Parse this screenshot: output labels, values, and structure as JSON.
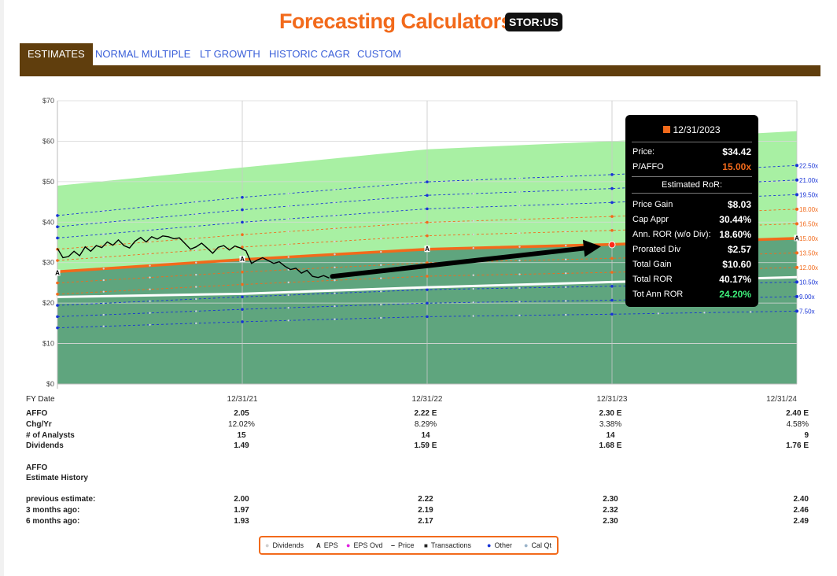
{
  "header": {
    "title": "Forecasting Calculators",
    "ticker": "STOR:US"
  },
  "tabs": [
    {
      "label": "ESTIMATES",
      "active": true
    },
    {
      "label": "NORMAL MULTIPLE",
      "active": false
    },
    {
      "label": "LT GROWTH",
      "active": false
    },
    {
      "label": "HISTORIC CAGR",
      "active": false
    },
    {
      "label": "CUSTOM",
      "active": false
    }
  ],
  "colors": {
    "accent": "#f26a1b",
    "tab_bar": "#603e0d",
    "band_upper": "#a8f0a3",
    "band_lower": "#5fa57e",
    "multiple_blue": "#1733d6",
    "multiple_orange": "#f26a1b",
    "price_line": "#000000",
    "dividend_line": "#ffffff",
    "tab_link": "#3a5fd9"
  },
  "chart_data": {
    "type": "line",
    "ylim": [
      0,
      70
    ],
    "y_ticks": [
      "$0",
      "$10",
      "$20",
      "$30",
      "$40",
      "$50",
      "$60",
      "$70"
    ],
    "y_tick_values": [
      0,
      10,
      20,
      30,
      40,
      50,
      60,
      70
    ],
    "x_axis_label": "FY Date",
    "x_categories": [
      "12/31/21",
      "12/31/22",
      "12/31/23",
      "12/31/24"
    ],
    "x_range_years": [
      2021.0,
      2025.0
    ],
    "x_tick_positions": [
      2022.0,
      2023.0,
      2024.0,
      2025.0
    ],
    "grid": true,
    "multiple_lines": {
      "labels": [
        "22.50x",
        "21.00x",
        "19.50x",
        "18.00x",
        "16.50x",
        "15.00x",
        "13.50x",
        "12.00x",
        "10.50x",
        "9.00x",
        "7.50x"
      ],
      "multiples": [
        22.5,
        21.0,
        19.5,
        18.0,
        16.5,
        15.0,
        13.5,
        12.0,
        10.5,
        9.0,
        7.5
      ],
      "colors": [
        "#1733d6",
        "#1733d6",
        "#1733d6",
        "#f26a1b",
        "#f26a1b",
        "#f26a1b",
        "#f26a1b",
        "#f26a1b",
        "#1733d6",
        "#1733d6",
        "#1733d6"
      ],
      "affo_x": [
        2021.0,
        2022.0,
        2023.0,
        2024.0,
        2025.0
      ],
      "affo_y": [
        1.85,
        2.05,
        2.22,
        2.3,
        2.4
      ]
    },
    "upper_band_top": [
      49.0,
      53.5,
      58.0,
      60.0,
      62.5
    ],
    "dividend_line": {
      "x": [
        2021.0,
        2022.0,
        2023.0,
        2024.0,
        2025.0
      ],
      "y": [
        21.5,
        22.3,
        23.9,
        25.2,
        26.4
      ]
    },
    "price_series": {
      "name": "Price",
      "x": [
        2021.0,
        2021.03,
        2021.06,
        2021.09,
        2021.12,
        2021.15,
        2021.18,
        2021.21,
        2021.24,
        2021.27,
        2021.3,
        2021.33,
        2021.36,
        2021.39,
        2021.42,
        2021.45,
        2021.48,
        2021.51,
        2021.54,
        2021.57,
        2021.6,
        2021.63,
        2021.66,
        2021.69,
        2021.72,
        2021.75,
        2021.78,
        2021.81,
        2021.84,
        2021.87,
        2021.9,
        2021.93,
        2021.96,
        2021.99,
        2022.02,
        2022.05,
        2022.08,
        2022.11,
        2022.14,
        2022.17,
        2022.2,
        2022.23,
        2022.26,
        2022.29,
        2022.32,
        2022.35,
        2022.38,
        2022.41,
        2022.44,
        2022.47
      ],
      "y": [
        33.5,
        31.2,
        31.5,
        32.8,
        31.7,
        33.9,
        32.8,
        34.2,
        33.7,
        35.1,
        34.3,
        35.6,
        34.2,
        33.6,
        35.3,
        36.2,
        35.1,
        36.4,
        35.8,
        36.6,
        36.4,
        35.9,
        36.1,
        34.7,
        33.3,
        33.9,
        34.8,
        33.6,
        32.3,
        33.8,
        34.2,
        33.1,
        34.1,
        33.6,
        32.9,
        29.8,
        30.6,
        31.2,
        30.5,
        29.8,
        30.2,
        29.1,
        28.3,
        28.6,
        27.4,
        28.1,
        26.6,
        26.3,
        26.8,
        26.2
      ]
    },
    "eps_markers": [
      {
        "x": 2021.0,
        "y": 27.4,
        "label": "A"
      },
      {
        "x": 2022.0,
        "y": 30.8,
        "label": "A"
      },
      {
        "x": 2023.0,
        "y": 33.3,
        "label": "A"
      },
      {
        "x": 2025.0,
        "y": 36.0,
        "label": "A"
      }
    ],
    "highlight_point": {
      "x": 2024.0,
      "y": 34.42
    },
    "arrow": {
      "from": {
        "x": 2022.47,
        "y": 26.2
      },
      "to": {
        "x": 2024.0,
        "y": 34.4
      }
    },
    "tooltip": {
      "date": "12/31/2023",
      "price_label": "Price:",
      "price": "$34.42",
      "pa_label": "P/AFFO",
      "pa": "15.00x",
      "section": "Estimated RoR:",
      "rows": [
        {
          "label": "Price Gain",
          "value": "$8.03"
        },
        {
          "label": "Cap Appr",
          "value": "30.44%"
        },
        {
          "label": "Ann. ROR (w/o Div):",
          "value": "18.60%"
        },
        {
          "label": "Prorated Div",
          "value": "$2.57"
        },
        {
          "label": "Total Gain",
          "value": "$10.60"
        },
        {
          "label": "Total ROR",
          "value": "40.17%"
        },
        {
          "label": "Tot Ann ROR",
          "value": "24.20%"
        }
      ]
    }
  },
  "table": {
    "fy_label": "FY Date",
    "rows": [
      {
        "label": "AFFO",
        "values": [
          "2.05",
          "2.22 E",
          "2.30 E",
          "2.40 E"
        ],
        "bold": true
      },
      {
        "label": "Chg/Yr",
        "values": [
          "12.02%",
          "8.29%",
          "3.38%",
          "4.58%"
        ],
        "bold": false
      },
      {
        "label": "# of Analysts",
        "values": [
          "15",
          "14",
          "14",
          "9"
        ],
        "bold": true
      },
      {
        "label": "Dividends",
        "values": [
          "1.49",
          "1.59 E",
          "1.68 E",
          "1.76 E"
        ],
        "bold": true
      }
    ],
    "history_title": "AFFO",
    "history_subtitle": "Estimate History",
    "history_rows": [
      {
        "label": "previous estimate:",
        "values": [
          "2.00",
          "2.22",
          "2.30",
          "2.40"
        ]
      },
      {
        "label": "3 months ago:",
        "values": [
          "1.97",
          "2.19",
          "2.32",
          "2.46"
        ]
      },
      {
        "label": "6 months ago:",
        "values": [
          "1.93",
          "2.17",
          "2.30",
          "2.49"
        ]
      }
    ]
  },
  "legend": [
    {
      "label": "Dividends",
      "marker": "dot",
      "color": "#dddddd"
    },
    {
      "label": "EPS",
      "marker": "A",
      "color": "#000000"
    },
    {
      "label": "EPS Ovd",
      "marker": "dot",
      "color": "#e020e0"
    },
    {
      "label": "Price",
      "marker": "dash",
      "color": "#000000"
    },
    {
      "label": "Transactions",
      "marker": "square",
      "color": "#000000"
    },
    {
      "label": "Other",
      "marker": "dot",
      "color": "#1733d6"
    },
    {
      "label": "Cal Qt",
      "marker": "dot",
      "color": "#9ab3c9"
    }
  ]
}
